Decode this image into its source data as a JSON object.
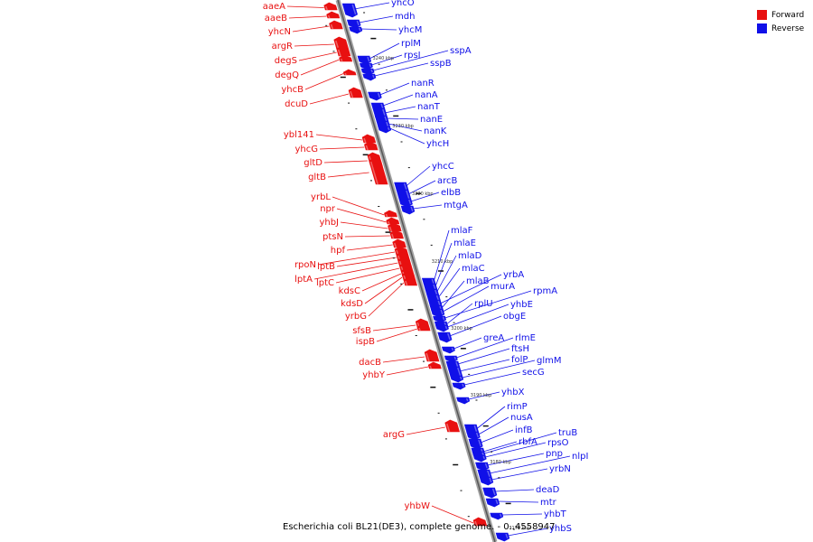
{
  "caption": "Escherichia coli BL21(DE3), complete genome. - 0..4558947",
  "legend": {
    "forward": {
      "label": "Forward",
      "color": "#e81010"
    },
    "reverse": {
      "label": "Reverse",
      "color": "#1010e8"
    }
  },
  "ticks": [
    "3240 kbp",
    "3230 kbp",
    "3220 kbp",
    "3210 kbp",
    "3200 kbp",
    "3190 kbp",
    "3180 kbp",
    "3170 kbp"
  ],
  "forward_labels": [
    "aaeA",
    "aaeB",
    "yhcN",
    "argR",
    "degS",
    "degQ",
    "yhcB",
    "dcuD",
    "ybl141",
    "yhcG",
    "gltD",
    "gltB",
    "yrbL",
    "npr",
    "yhbJ",
    "ptsN",
    "hpf",
    "rpoN",
    "lptB",
    "lptA",
    "lptC",
    "kdsC",
    "kdsD",
    "yrbG",
    "sfsB",
    "ispB",
    "dacB",
    "yhbY",
    "argG",
    "yhbW"
  ],
  "reverse_labels": [
    "yhcO",
    "mdh",
    "yhcM",
    "rplM",
    "rpsI",
    "sspA",
    "sspB",
    "nanR",
    "nanA",
    "nanT",
    "nanE",
    "nanK",
    "yhcH",
    "yhcC",
    "arcB",
    "elbB",
    "mtgA",
    "mlaF",
    "mlaE",
    "mlaD",
    "mlaC",
    "yrbA",
    "mlaB",
    "murA",
    "rpmA",
    "rplU",
    "yhbE",
    "obgE",
    "greA",
    "rlmE",
    "ftsH",
    "folP",
    "glmM",
    "secG",
    "yhbX",
    "rimP",
    "nusA",
    "infB",
    "rbfA",
    "truB",
    "rpsO",
    "pnp",
    "nlpI",
    "yrbN",
    "deaD",
    "mtr",
    "yhbT",
    "yhbS"
  ]
}
